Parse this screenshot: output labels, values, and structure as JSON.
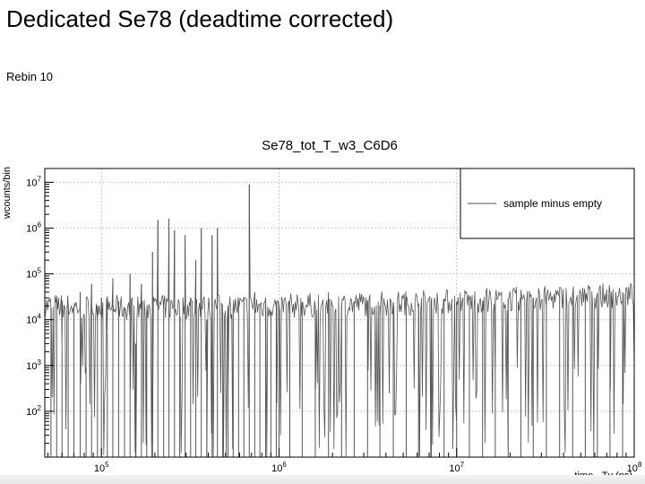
{
  "slide": {
    "title": "Dedicated Se78 (deadtime corrected)",
    "note": "Rebin 10"
  },
  "chart_data": {
    "type": "line",
    "title": "Se78_tot_T_w3_C6D6",
    "xlabel": "time - Tγ (ns)",
    "ylabel": "wcounts/bin",
    "x_scale": "log",
    "y_scale": "log",
    "xlim": [
      48000,
      100000000
    ],
    "ylim": [
      10,
      20000000
    ],
    "xticks": [
      {
        "value": 100000,
        "label": "10^5"
      },
      {
        "value": 1000000,
        "label": "10^6"
      },
      {
        "value": 10000000,
        "label": "10^7"
      },
      {
        "value": 100000000,
        "label": "10^8"
      }
    ],
    "yticks": [
      {
        "value": 100,
        "label": "10^2"
      },
      {
        "value": 1000,
        "label": "10^3"
      },
      {
        "value": 10000,
        "label": "10^4"
      },
      {
        "value": 100000,
        "label": "10^5"
      },
      {
        "value": 1000000,
        "label": "10^6"
      },
      {
        "value": 10000000,
        "label": "10^7"
      }
    ],
    "grid": true,
    "legend_position": "top-right",
    "series": [
      {
        "name": "sample minus empty",
        "color": "#555555",
        "baseline_by_time": [
          [
            48000,
            20000
          ],
          [
            150000,
            18000
          ],
          [
            1000000,
            20000
          ],
          [
            10000000,
            25000
          ],
          [
            100000000,
            35000
          ]
        ],
        "x": [
          48000,
          52000,
          56000,
          60000,
          65000,
          70000,
          76000,
          82000,
          88000,
          95000,
          100000,
          108000,
          116000,
          125000,
          135000,
          145000,
          156000,
          168000,
          180000,
          194000,
          208000,
          224000,
          240000,
          258000,
          276000,
          296000,
          318000,
          340000,
          365000,
          392000,
          420000,
          450000,
          482000,
          516000,
          552000,
          592000,
          634000,
          680000,
          730000,
          780000,
          840000,
          900000,
          965000,
          1000000,
          1150000,
          1350000,
          1600000,
          1900000,
          2250000,
          2650000,
          3150000,
          3700000,
          4400000,
          5200000,
          6100000,
          7200000,
          8500000,
          10000000,
          11800000,
          14000000,
          16500000,
          19500000,
          23000000,
          27000000,
          32000000,
          38000000,
          45000000,
          53000000,
          62000000,
          73000000,
          86000000,
          100000000
        ],
        "y": [
          25000,
          18000,
          30000,
          2000,
          22000,
          15000,
          40000,
          900,
          60000,
          20000,
          30000,
          5000,
          80000,
          25000,
          15000,
          100000,
          3000,
          60000,
          15000,
          300000,
          1500000,
          20000,
          1600000,
          900000,
          12000,
          700000,
          30000,
          200000,
          1000000,
          10000,
          700000,
          1000000,
          15000,
          20000,
          18000,
          25000,
          30000,
          9000000,
          40000,
          20000,
          30000,
          15000,
          25000,
          20000,
          22000,
          24000,
          20000,
          25000,
          21000,
          23000,
          26000,
          20000,
          24000,
          25000,
          22000,
          26000,
          24000,
          25000,
          27000,
          26000,
          30000,
          28000,
          31000,
          30000,
          33000,
          32000,
          36000,
          35000,
          38000,
          36000,
          40000,
          37000
        ]
      }
    ]
  }
}
